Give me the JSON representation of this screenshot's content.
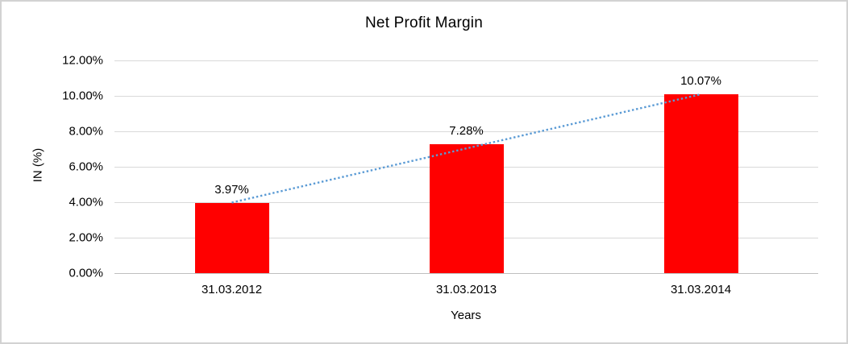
{
  "chart_data": {
    "type": "bar",
    "title": "Net Profit Margin",
    "categories": [
      "31.03.2012",
      "31.03.2013",
      "31.03.2014"
    ],
    "values": [
      3.97,
      7.28,
      10.07
    ],
    "data_labels": [
      "3.97%",
      "7.28%",
      "10.07%"
    ],
    "xlabel": "Years",
    "ylabel": "IN (%)",
    "ylim": [
      0,
      12
    ],
    "ytick_interval": 2,
    "ytick_labels": [
      "0.00%",
      "2.00%",
      "4.00%",
      "6.00%",
      "8.00%",
      "10.00%",
      "12.00%"
    ],
    "grid": true,
    "legend": "none",
    "bar_color": "#ff0000",
    "gridline_color": "#d9d9d9",
    "axis_line_color": "#bfbfbf",
    "text_color": "#000000",
    "trendline": {
      "type": "linear",
      "style": "dotted",
      "color": "#5b9bd5",
      "start_pct": 3.98,
      "end_pct": 10.09
    }
  }
}
